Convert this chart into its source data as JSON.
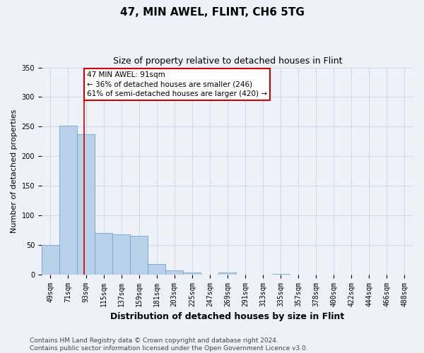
{
  "title": "47, MIN AWEL, FLINT, CH6 5TG",
  "subtitle": "Size of property relative to detached houses in Flint",
  "xlabel": "Distribution of detached houses by size in Flint",
  "ylabel": "Number of detached properties",
  "bar_labels": [
    "49sqm",
    "71sqm",
    "93sqm",
    "115sqm",
    "137sqm",
    "159sqm",
    "181sqm",
    "203sqm",
    "225sqm",
    "247sqm",
    "269sqm",
    "291sqm",
    "313sqm",
    "335sqm",
    "357sqm",
    "378sqm",
    "400sqm",
    "422sqm",
    "444sqm",
    "466sqm",
    "488sqm"
  ],
  "bar_heights": [
    50,
    252,
    237,
    70,
    68,
    65,
    17,
    7,
    3,
    0,
    3,
    0,
    0,
    1,
    0,
    0,
    0,
    0,
    0,
    0,
    0
  ],
  "bar_color": "#b8d0ea",
  "bar_edge_color": "#6aaad4",
  "grid_color": "#d0d8e8",
  "annotation_box_text": "47 MIN AWEL: 91sqm\n← 36% of detached houses are smaller (246)\n61% of semi-detached houses are larger (420) →",
  "annotation_box_color": "#ffffff",
  "annotation_box_edge_color": "#cc0000",
  "annotation_line_color": "#cc0000",
  "ylim": [
    0,
    350
  ],
  "yticks": [
    0,
    50,
    100,
    150,
    200,
    250,
    300,
    350
  ],
  "footer_text": "Contains HM Land Registry data © Crown copyright and database right 2024.\nContains public sector information licensed under the Open Government Licence v3.0.",
  "title_fontsize": 11,
  "subtitle_fontsize": 9,
  "xlabel_fontsize": 9,
  "ylabel_fontsize": 8,
  "tick_fontsize": 7,
  "footer_fontsize": 6.5,
  "background_color": "#eef2f8"
}
